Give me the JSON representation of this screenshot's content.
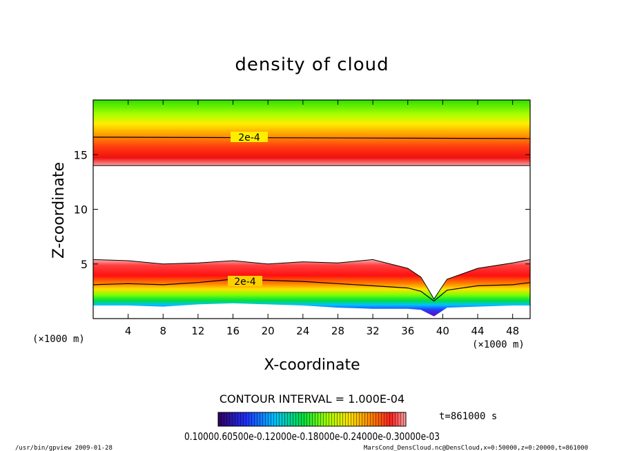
{
  "chart_data": {
    "type": "heatmap",
    "title": "density of cloud",
    "xlabel": "X-coordinate",
    "ylabel": "Z-coordinate",
    "x_unit": "(×1000 m)",
    "z_unit": "(×1000 m)",
    "xlim": [
      0,
      50
    ],
    "ylim": [
      0,
      20
    ],
    "x_ticks": [
      4,
      8,
      12,
      16,
      20,
      24,
      28,
      32,
      36,
      40,
      44,
      48
    ],
    "y_ticks": [
      5,
      10,
      15
    ],
    "contour_labels": [
      "2e-4",
      "2e-4"
    ],
    "contour_interval_text": "CONTOUR INTERVAL = 1.000E-04",
    "time_text": "t=861000 s",
    "colorbar_labels_text": "0.10000.60500e-0.12000e-0.18000e-0.24000e-0.30000e-03",
    "upper_layer": {
      "z_bottom": 14.0,
      "z_top": 20.0,
      "contour_2e4_z": 16.6
    },
    "lower_layer": {
      "x": [
        0,
        4,
        8,
        12,
        16,
        20,
        24,
        28,
        32,
        36,
        37.5,
        39,
        40.5,
        44,
        48,
        50
      ],
      "top": [
        5.4,
        5.3,
        5.0,
        5.1,
        5.3,
        5.0,
        5.2,
        5.1,
        5.4,
        4.6,
        3.8,
        1.8,
        3.6,
        4.6,
        5.1,
        5.4
      ],
      "contour": [
        3.1,
        3.2,
        3.1,
        3.3,
        3.6,
        3.5,
        3.4,
        3.2,
        3.0,
        2.8,
        2.5,
        1.6,
        2.6,
        3.0,
        3.1,
        3.3
      ],
      "bottom": [
        1.2,
        1.2,
        1.1,
        1.3,
        1.4,
        1.3,
        1.2,
        1.0,
        0.9,
        0.9,
        0.8,
        0.2,
        1.0,
        1.1,
        1.2,
        1.2
      ]
    }
  },
  "footer": {
    "left": "/usr/bin/gpview   2009-01-28",
    "right": "MarsCond_DensCloud.nc@DensCloud,x=0:50000,z=0:20000,t=861000"
  }
}
